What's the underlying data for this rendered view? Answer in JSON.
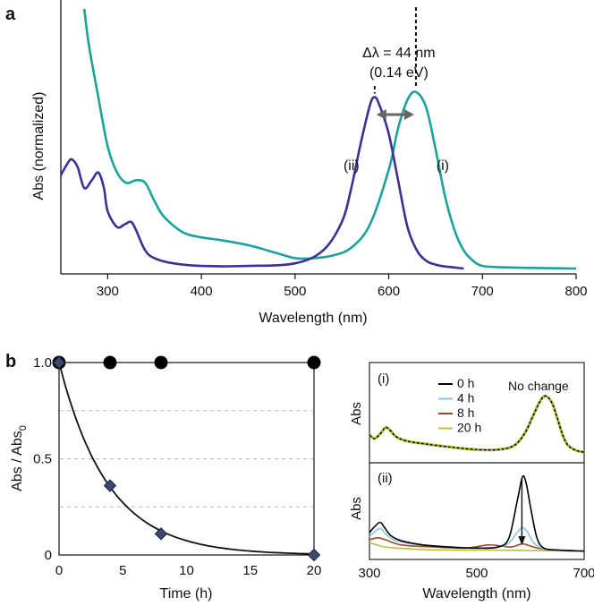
{
  "colors": {
    "i": "#1aa39a",
    "ii": "#3d2f94",
    "h0": "#000000",
    "h4": "#8ac6e6",
    "h8": "#9c4a25",
    "h20": "#b7c23a",
    "grid": "#bbbbbb"
  },
  "chart_data": [
    {
      "panel": "a",
      "type": "line",
      "xlabel": "Wavelength (nm)",
      "ylabel": "Abs (normalized)",
      "xlim": [
        250,
        800
      ],
      "ylim": [
        0,
        1.0
      ],
      "xticks": [
        300,
        400,
        500,
        600,
        700,
        800
      ],
      "annotation": {
        "line1": "Δλ = 44 nm",
        "line2": "(0.14 eV)",
        "from": 585,
        "to": 629
      },
      "series": [
        {
          "name": "(i)",
          "peak": 629,
          "x": [
            275,
            280,
            290,
            300,
            310,
            320,
            330,
            340,
            350,
            360,
            380,
            400,
            420,
            450,
            480,
            500,
            520,
            540,
            560,
            580,
            600,
            610,
            620,
            629,
            640,
            650,
            660,
            670,
            680,
            690,
            700,
            720,
            740,
            760,
            780,
            800
          ],
          "y": [
            1.0,
            0.86,
            0.66,
            0.47,
            0.37,
            0.33,
            0.34,
            0.33,
            0.26,
            0.2,
            0.14,
            0.12,
            0.11,
            0.09,
            0.06,
            0.04,
            0.04,
            0.05,
            0.08,
            0.17,
            0.38,
            0.54,
            0.65,
            0.68,
            0.62,
            0.46,
            0.28,
            0.15,
            0.07,
            0.03,
            0.01,
            0.005,
            0.003,
            0.002,
            0.001,
            0.0
          ]
        },
        {
          "name": "(ii)",
          "peak": 585,
          "x": [
            250,
            258,
            262,
            268,
            275,
            283,
            290,
            296,
            300,
            310,
            318,
            325,
            330,
            340,
            350,
            370,
            400,
            450,
            500,
            530,
            550,
            560,
            570,
            580,
            585,
            590,
            600,
            610,
            620,
            630,
            640,
            650,
            660,
            670,
            680
          ],
          "y": [
            0.36,
            0.41,
            0.42,
            0.39,
            0.31,
            0.34,
            0.37,
            0.31,
            0.22,
            0.16,
            0.17,
            0.18,
            0.15,
            0.07,
            0.04,
            0.02,
            0.01,
            0.01,
            0.02,
            0.07,
            0.18,
            0.31,
            0.48,
            0.63,
            0.66,
            0.63,
            0.52,
            0.34,
            0.16,
            0.07,
            0.03,
            0.015,
            0.008,
            0.004,
            0.0
          ]
        }
      ]
    },
    {
      "panel": "b",
      "type": "scatter",
      "xlabel": "Time (h)",
      "ylabel": "Abs / Abs",
      "ylabel_sub": "0",
      "xlim": [
        0,
        20
      ],
      "ylim": [
        0,
        1.0
      ],
      "xticks": [
        0,
        5,
        10,
        15,
        20
      ],
      "yticks": [
        0,
        0.5,
        1.0
      ],
      "ytick_labels": [
        "0",
        "0.5",
        "1.0"
      ],
      "gridlines_y": [
        0.25,
        0.5,
        0.75
      ],
      "series": [
        {
          "name": "(i)",
          "marker": "circle",
          "x": [
            0,
            4,
            8,
            20
          ],
          "y": [
            1.0,
            1.0,
            1.0,
            1.0
          ]
        },
        {
          "name": "(ii)",
          "marker": "diamond",
          "x": [
            0,
            4,
            8,
            20
          ],
          "y": [
            1.0,
            0.36,
            0.11,
            0.0
          ]
        },
        {
          "name": "(ii) fit",
          "type": "exponential decay",
          "y0": 1.0,
          "k": 0.26
        }
      ]
    },
    {
      "panel": "b-inset",
      "type": "line",
      "xlabel": "Wavelength (nm)",
      "ylabel": "Abs",
      "xlim": [
        300,
        700
      ],
      "xticks": [
        300,
        500,
        700
      ],
      "top_label": "(i)",
      "bottom_label": "(ii)",
      "note": "No change",
      "legend": [
        "0 h",
        "4 h",
        "8 h",
        "20 h"
      ]
    }
  ]
}
